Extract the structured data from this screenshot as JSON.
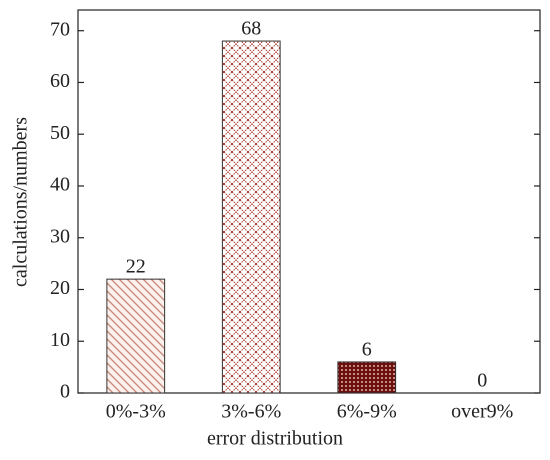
{
  "chart_data": {
    "type": "bar",
    "categories": [
      "0%-3%",
      "3%-6%",
      "6%-9%",
      "over9%"
    ],
    "values": [
      22,
      68,
      6,
      0
    ],
    "color": "#8b1a1a",
    "xlabel": "error distribution",
    "ylabel": "calculations/numbers",
    "ylim": [
      0,
      74
    ],
    "yticks": [
      0,
      10,
      20,
      30,
      40,
      50,
      60,
      70
    ]
  }
}
